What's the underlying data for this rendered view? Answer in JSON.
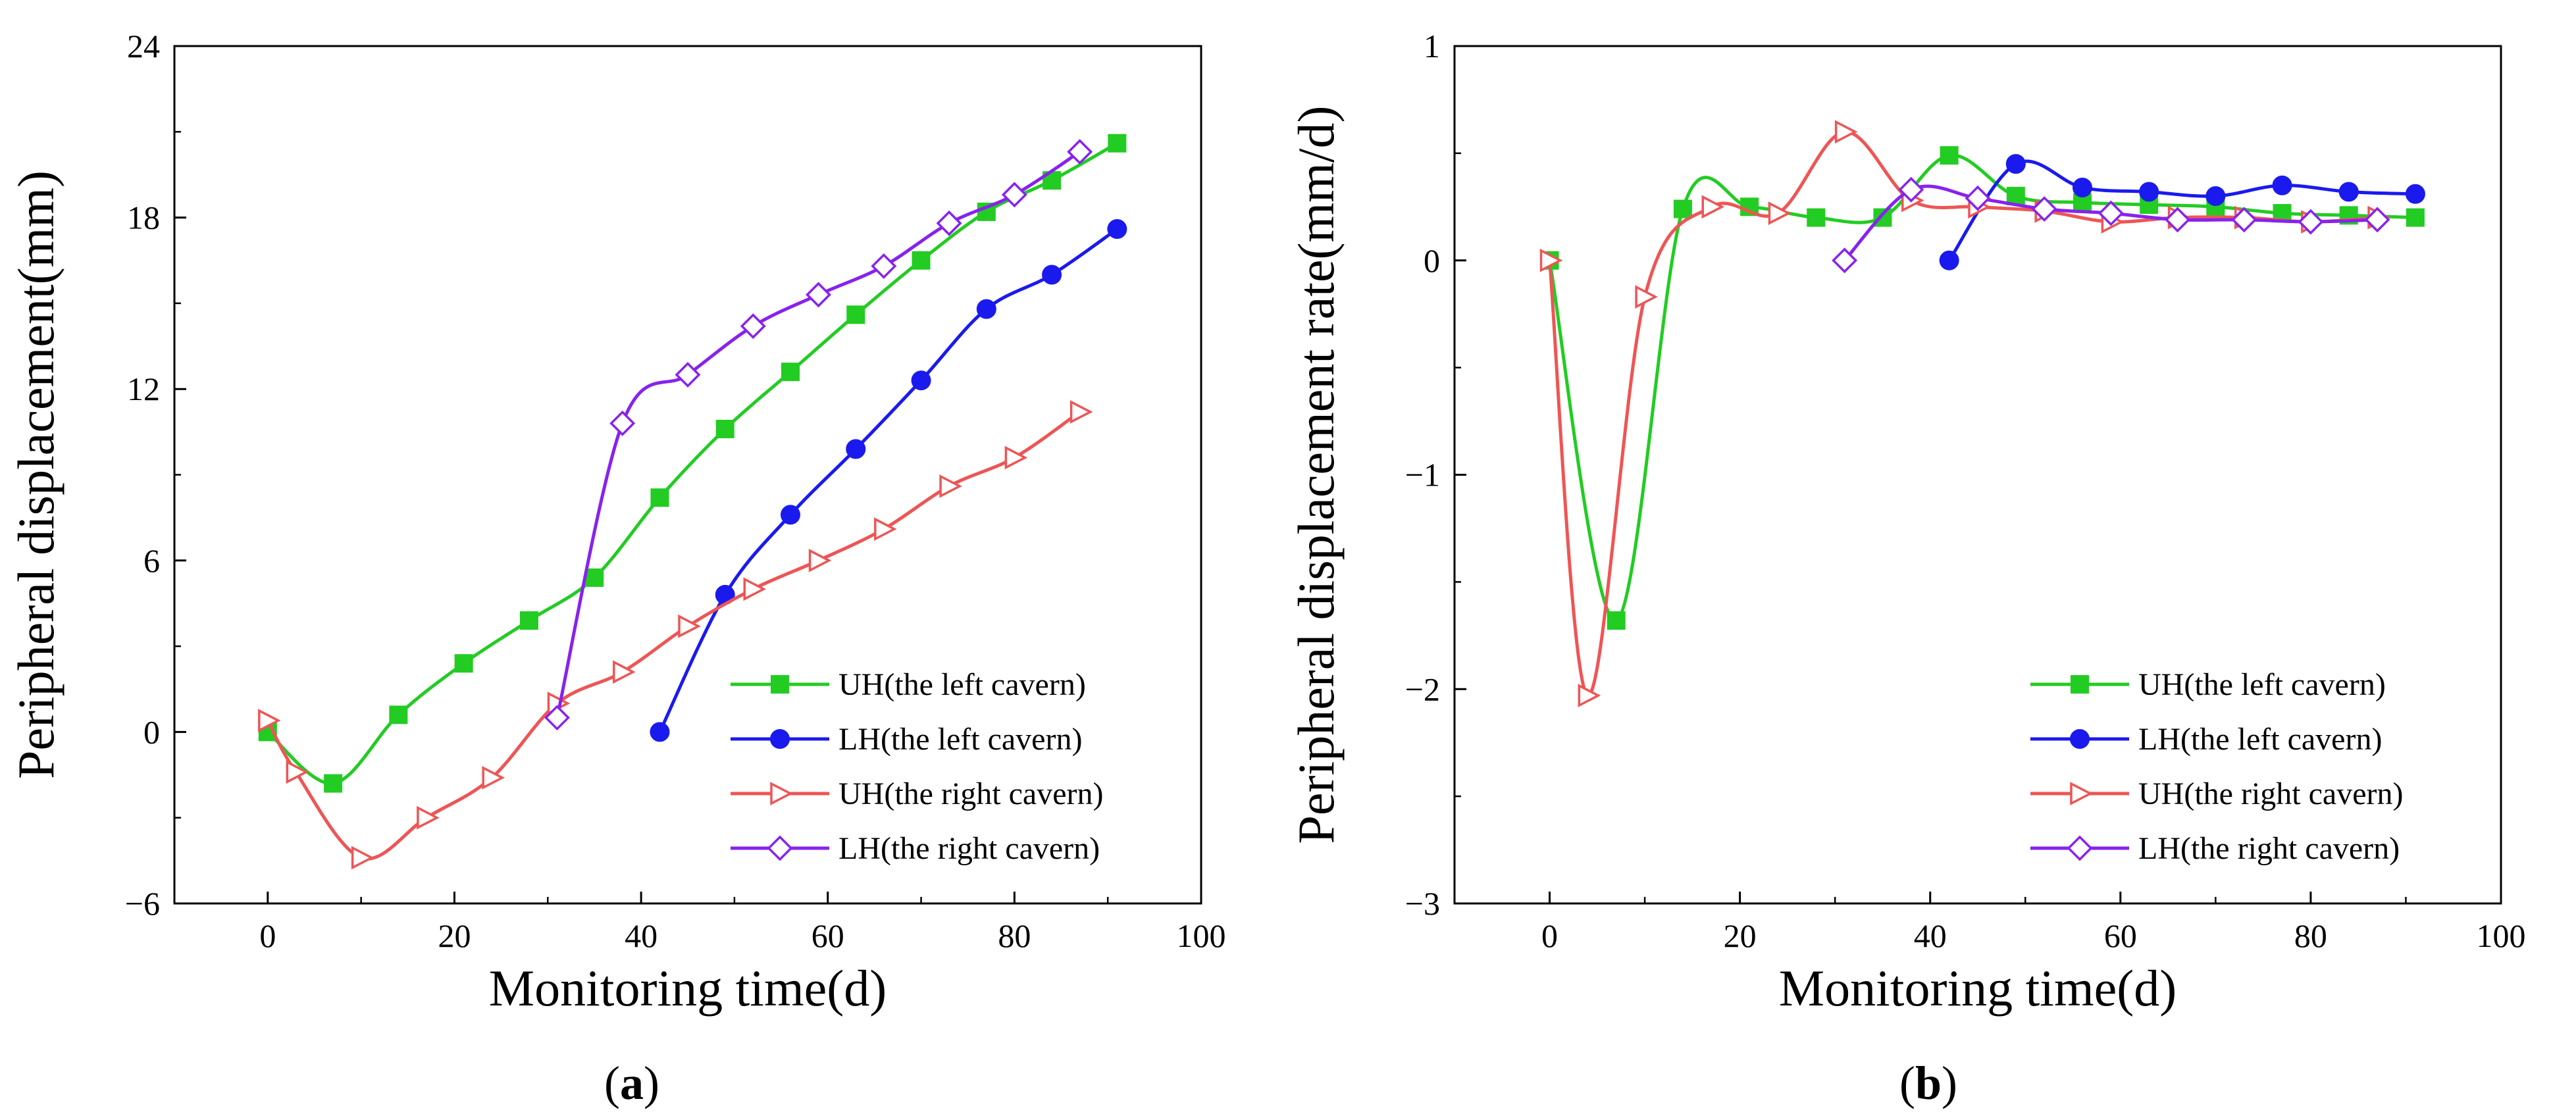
{
  "chart_data": [
    {
      "type": "line",
      "panel_label": "(a)",
      "xlabel": "Monitoring time(d)",
      "ylabel": "Peripheral displacement(mm)",
      "xlim": [
        -10,
        100
      ],
      "ylim": [
        -6,
        24
      ],
      "xticks": [
        0,
        20,
        40,
        60,
        80,
        100
      ],
      "yticks": [
        -6,
        0,
        6,
        12,
        18,
        24
      ],
      "legend_position": "lower-right",
      "series": [
        {
          "name": "UH(the left cavern)",
          "color": "#22cc22",
          "marker": "square-filled",
          "x": [
            0,
            7,
            14,
            21,
            28,
            35,
            42,
            49,
            56,
            63,
            70,
            77,
            84,
            91
          ],
          "y": [
            0,
            -1.8,
            0.6,
            2.4,
            3.9,
            5.4,
            8.2,
            10.6,
            12.6,
            14.6,
            16.5,
            18.2,
            19.3,
            20.6
          ]
        },
        {
          "name": "LH(the left cavern)",
          "color": "#1a1aee",
          "marker": "circle-filled",
          "x": [
            42,
            49,
            56,
            63,
            70,
            77,
            84,
            91
          ],
          "y": [
            0,
            4.8,
            7.6,
            9.9,
            12.3,
            14.8,
            16.0,
            17.6
          ]
        },
        {
          "name": "UH(the right cavern)",
          "color": "#ee5555",
          "marker": "triangle-right-open",
          "x": [
            0,
            3,
            10,
            17,
            24,
            31,
            38,
            45,
            52,
            59,
            66,
            73,
            80,
            87
          ],
          "y": [
            0.4,
            -1.4,
            -4.4,
            -3.0,
            -1.6,
            1.0,
            2.1,
            3.7,
            5.0,
            6.0,
            7.1,
            8.6,
            9.6,
            11.2
          ]
        },
        {
          "name": "LH(the right cavern)",
          "color": "#8822ee",
          "marker": "diamond-open",
          "x": [
            31,
            38,
            45,
            52,
            59,
            66,
            73,
            80,
            87
          ],
          "y": [
            0.5,
            10.8,
            12.5,
            14.2,
            15.3,
            16.3,
            17.8,
            18.8,
            20.3
          ]
        }
      ]
    },
    {
      "type": "line",
      "panel_label": "(b)",
      "xlabel": "Monitoring time(d)",
      "ylabel": "Peripheral displacement rate(mm/d)",
      "xlim": [
        -10,
        100
      ],
      "ylim": [
        -3,
        1
      ],
      "xticks": [
        0,
        20,
        40,
        60,
        80,
        100
      ],
      "yticks": [
        -3,
        -2,
        -1,
        0,
        1
      ],
      "legend_position": "lower-right",
      "series": [
        {
          "name": "UH(the left cavern)",
          "color": "#22cc22",
          "marker": "square-filled",
          "x": [
            0,
            7,
            14,
            21,
            28,
            35,
            42,
            49,
            56,
            63,
            70,
            77,
            84,
            91
          ],
          "y": [
            0,
            -1.68,
            0.24,
            0.25,
            0.2,
            0.2,
            0.49,
            0.3,
            0.27,
            0.26,
            0.25,
            0.22,
            0.21,
            0.2
          ]
        },
        {
          "name": "LH(the left cavern)",
          "color": "#1a1aee",
          "marker": "circle-filled",
          "x": [
            42,
            49,
            56,
            63,
            70,
            77,
            84,
            91
          ],
          "y": [
            0,
            0.45,
            0.34,
            0.32,
            0.3,
            0.35,
            0.32,
            0.31
          ]
        },
        {
          "name": "UH(the right cavern)",
          "color": "#ee5555",
          "marker": "triangle-right-open",
          "x": [
            0,
            4,
            10,
            17,
            24,
            31,
            38,
            45,
            52,
            59,
            66,
            73,
            80,
            87
          ],
          "y": [
            0,
            -2.03,
            -0.17,
            0.25,
            0.22,
            0.6,
            0.28,
            0.25,
            0.23,
            0.18,
            0.2,
            0.2,
            0.18,
            0.2
          ]
        },
        {
          "name": "LH(the right cavern)",
          "color": "#8822ee",
          "marker": "diamond-open",
          "x": [
            31,
            38,
            45,
            52,
            59,
            66,
            73,
            80,
            87
          ],
          "y": [
            0,
            0.33,
            0.29,
            0.24,
            0.22,
            0.19,
            0.19,
            0.18,
            0.19
          ]
        }
      ]
    }
  ]
}
